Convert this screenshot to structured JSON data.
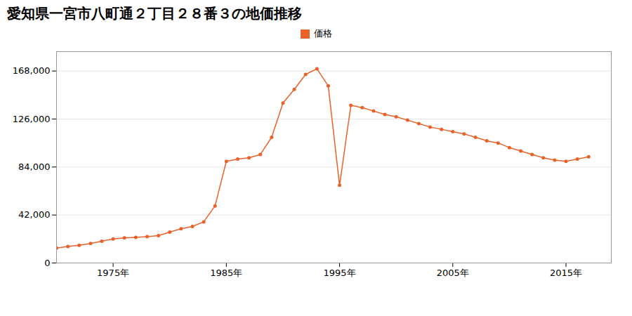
{
  "chart_data": {
    "type": "line",
    "title": "愛知県一宮市八町通２丁目２８番３の地価推移",
    "x": [
      1970,
      1971,
      1972,
      1973,
      1974,
      1975,
      1976,
      1977,
      1978,
      1979,
      1980,
      1981,
      1982,
      1983,
      1984,
      1985,
      1986,
      1987,
      1988,
      1989,
      1990,
      1991,
      1992,
      1993,
      1994,
      1995,
      1996,
      1997,
      1998,
      1999,
      2000,
      2001,
      2002,
      2003,
      2004,
      2005,
      2006,
      2007,
      2008,
      2009,
      2010,
      2011,
      2012,
      2013,
      2014,
      2015,
      2016,
      2017
    ],
    "series": [
      {
        "name": "価格",
        "color": "#e8622a",
        "marker": "circle",
        "values": [
          13000,
          14500,
          15500,
          17000,
          19000,
          21000,
          22000,
          22500,
          23000,
          24000,
          27000,
          30000,
          32000,
          36000,
          50000,
          89000,
          91000,
          92000,
          95000,
          110000,
          140000,
          152000,
          165000,
          170000,
          155000,
          68000,
          138000,
          136000,
          133000,
          130000,
          128000,
          125000,
          122000,
          119000,
          117000,
          115000,
          113000,
          110000,
          107000,
          105000,
          101000,
          98000,
          95000,
          92000,
          90000,
          89000,
          91000,
          93000
        ]
      }
    ],
    "xlim": [
      1970,
      2019
    ],
    "xticks": [
      {
        "value": 1975,
        "label": "1975年"
      },
      {
        "value": 1985,
        "label": "1985年"
      },
      {
        "value": 1995,
        "label": "1995年"
      },
      {
        "value": 2005,
        "label": "2005年"
      },
      {
        "value": 2015,
        "label": "2015年"
      }
    ],
    "ylim": [
      0,
      185000
    ],
    "yticks": [
      0,
      {
        "value": 42000,
        "label": "42,000"
      },
      {
        "value": 84000,
        "label": "84,000"
      },
      {
        "value": 126000,
        "label": "126,000"
      },
      {
        "value": 168000,
        "label": "168,000"
      }
    ],
    "grid": "y",
    "legend": "top"
  }
}
